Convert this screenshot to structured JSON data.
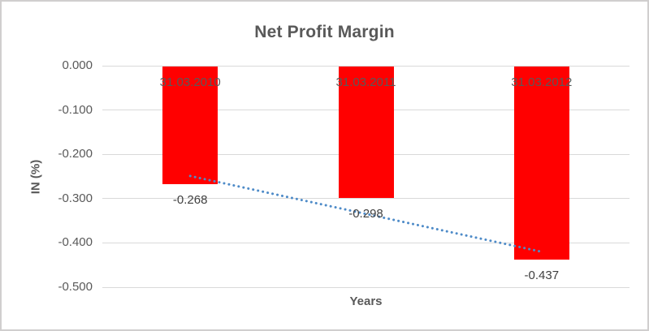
{
  "chart_data": {
    "type": "bar",
    "title": "Net Profit Margin",
    "xlabel": "Years",
    "ylabel": "IN (%)",
    "categories": [
      "31.03.2010",
      "31.03.2011",
      "31.03.2012"
    ],
    "values": [
      -0.268,
      -0.298,
      -0.437
    ],
    "data_labels": [
      "-0.268",
      "-0.298",
      "-0.437"
    ],
    "ylim": [
      -0.5,
      0
    ],
    "y_ticks": [
      {
        "value": 0,
        "label": "0.000"
      },
      {
        "value": -0.1,
        "label": "-0.100"
      },
      {
        "value": -0.2,
        "label": "-0.200"
      },
      {
        "value": -0.3,
        "label": "-0.300"
      },
      {
        "value": -0.4,
        "label": "-0.400"
      },
      {
        "value": -0.5,
        "label": "-0.500"
      }
    ],
    "grid": true,
    "legend": "none",
    "trendline": {
      "type": "linear",
      "style": "dotted",
      "start_value": -0.249,
      "end_value": -0.42
    },
    "colors": {
      "bar": "#FF0000",
      "trendline": "#4E8BC8",
      "axis_text": "#595959",
      "data_label_text": "#3F3F3F",
      "gridline": "#D9D9D9",
      "chart_border": "#D0CECE"
    }
  }
}
